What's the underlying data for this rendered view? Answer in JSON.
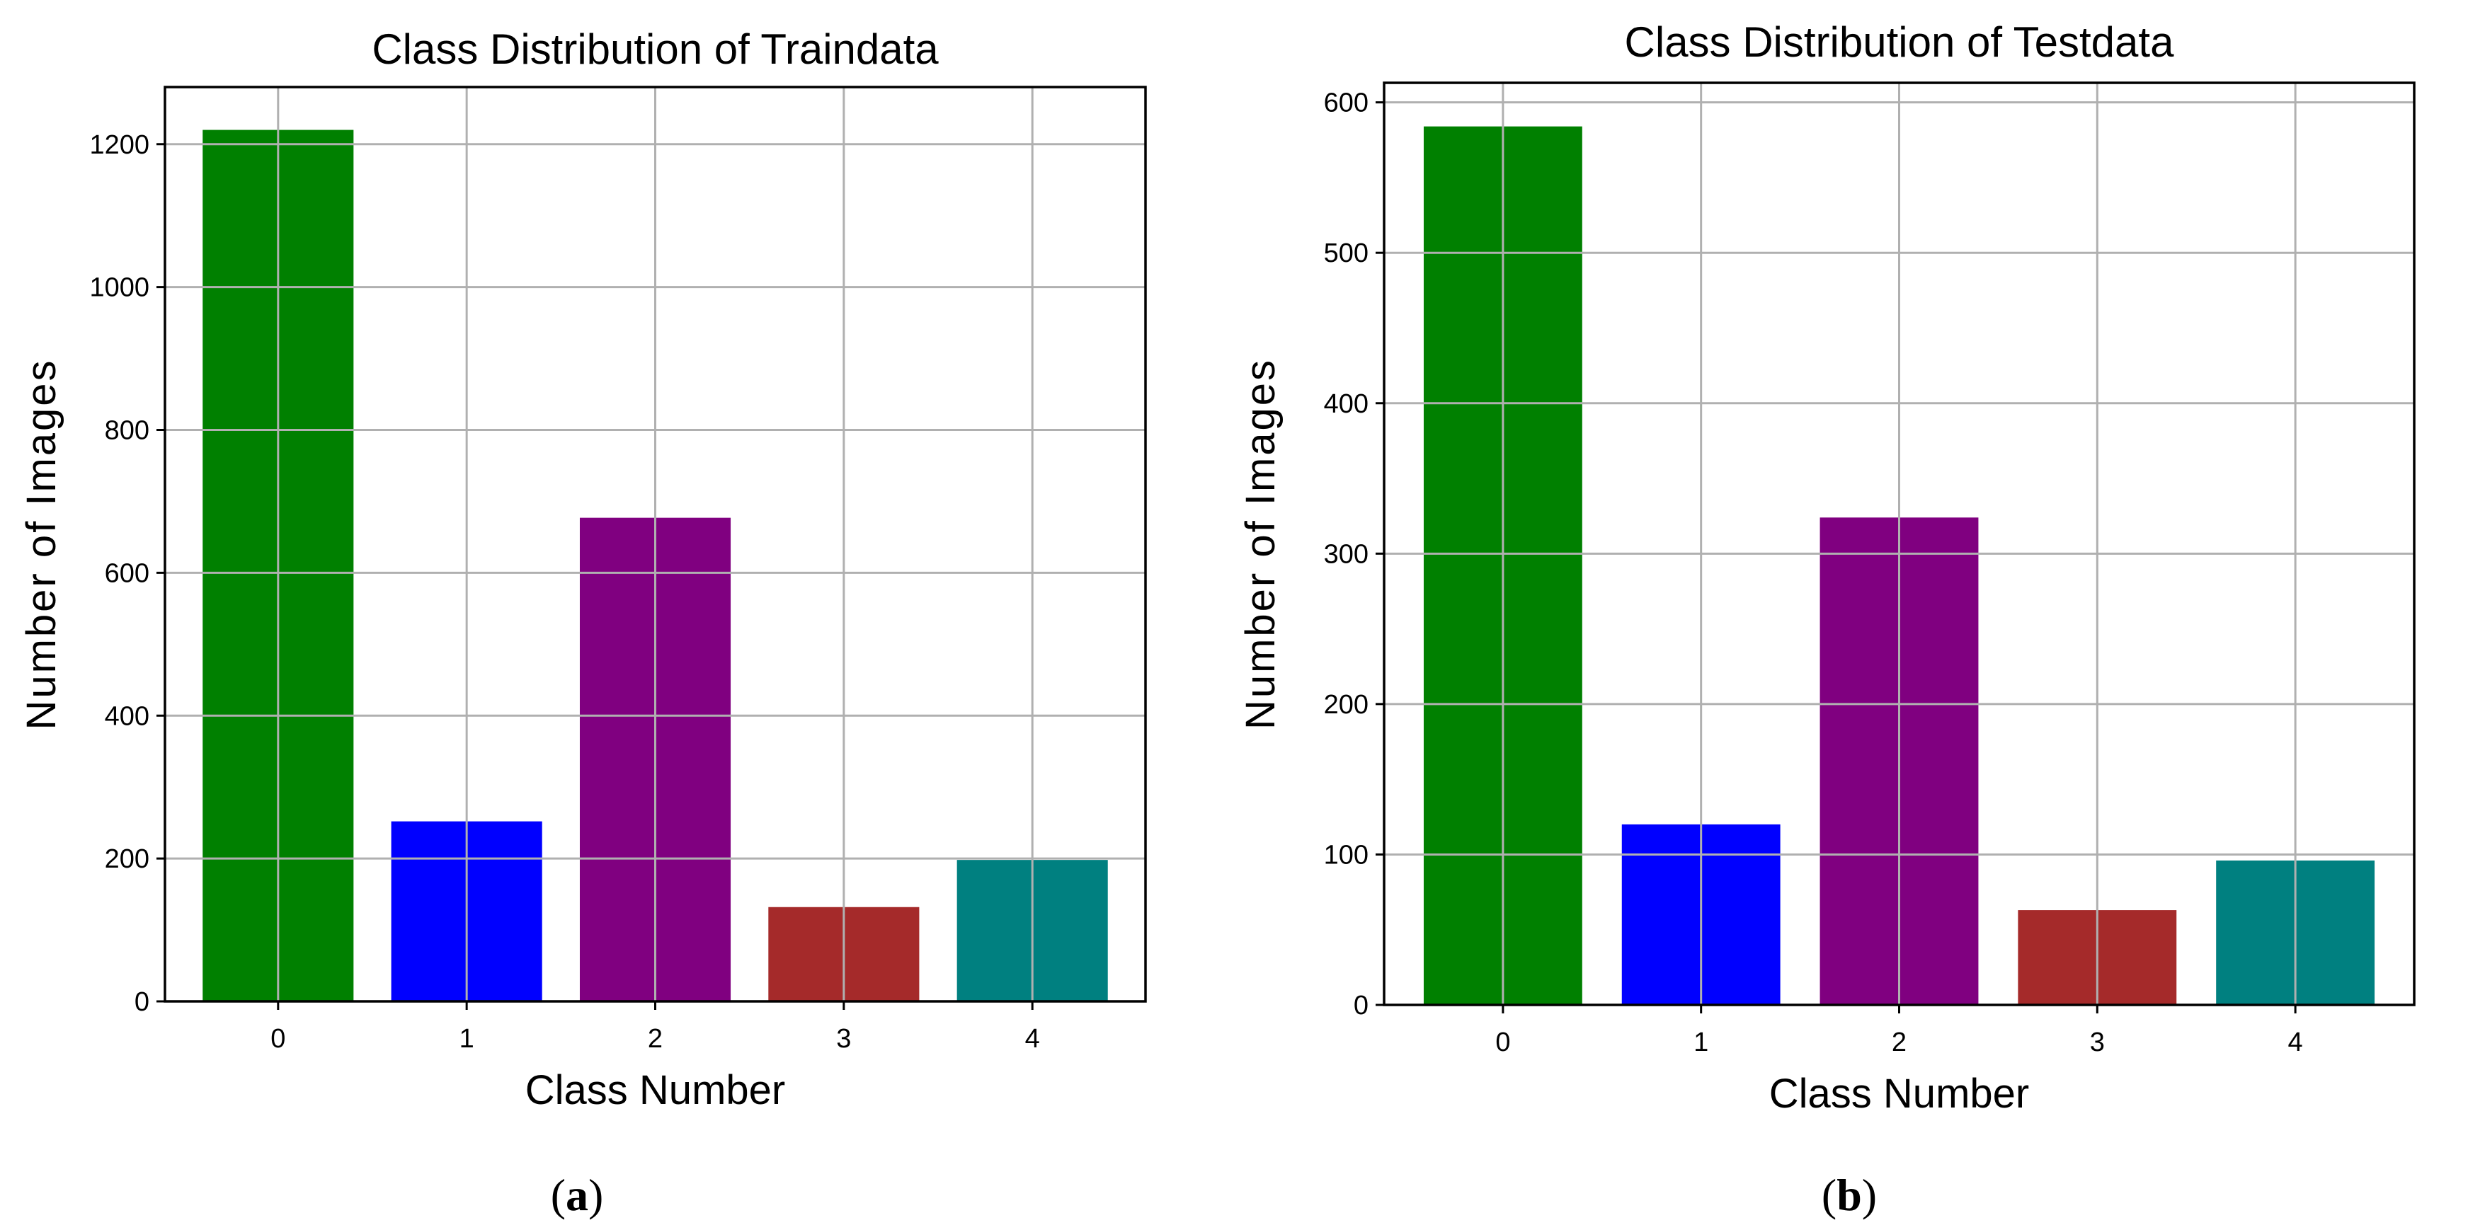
{
  "chart_data": [
    {
      "type": "bar",
      "title": "Class Distribution of Traindata",
      "xlabel": "Class Number",
      "ylabel": "Number of Images",
      "categories": [
        "0",
        "1",
        "2",
        "3",
        "4"
      ],
      "values": [
        1220,
        252,
        677,
        132,
        198
      ],
      "colors": [
        "#008000",
        "#0000ff",
        "#800080",
        "#a52a2a",
        "#008080"
      ],
      "ylim": [
        0,
        1280
      ],
      "yticks": [
        0,
        200,
        400,
        600,
        800,
        1000,
        1200
      ],
      "grid": true,
      "caption": {
        "open": "(",
        "letter": "a",
        "close": ")"
      }
    },
    {
      "type": "bar",
      "title": "Class Distribution of Testdata",
      "xlabel": "Class Number",
      "ylabel": "Number of Images",
      "categories": [
        "0",
        "1",
        "2",
        "3",
        "4"
      ],
      "values": [
        584,
        120,
        324,
        63,
        96
      ],
      "colors": [
        "#008000",
        "#0000ff",
        "#800080",
        "#a52a2a",
        "#008080"
      ],
      "ylim": [
        0,
        613
      ],
      "yticks": [
        0,
        100,
        200,
        300,
        400,
        500,
        600
      ],
      "grid": true,
      "caption": {
        "open": "(",
        "letter": "b",
        "close": ")"
      }
    }
  ]
}
